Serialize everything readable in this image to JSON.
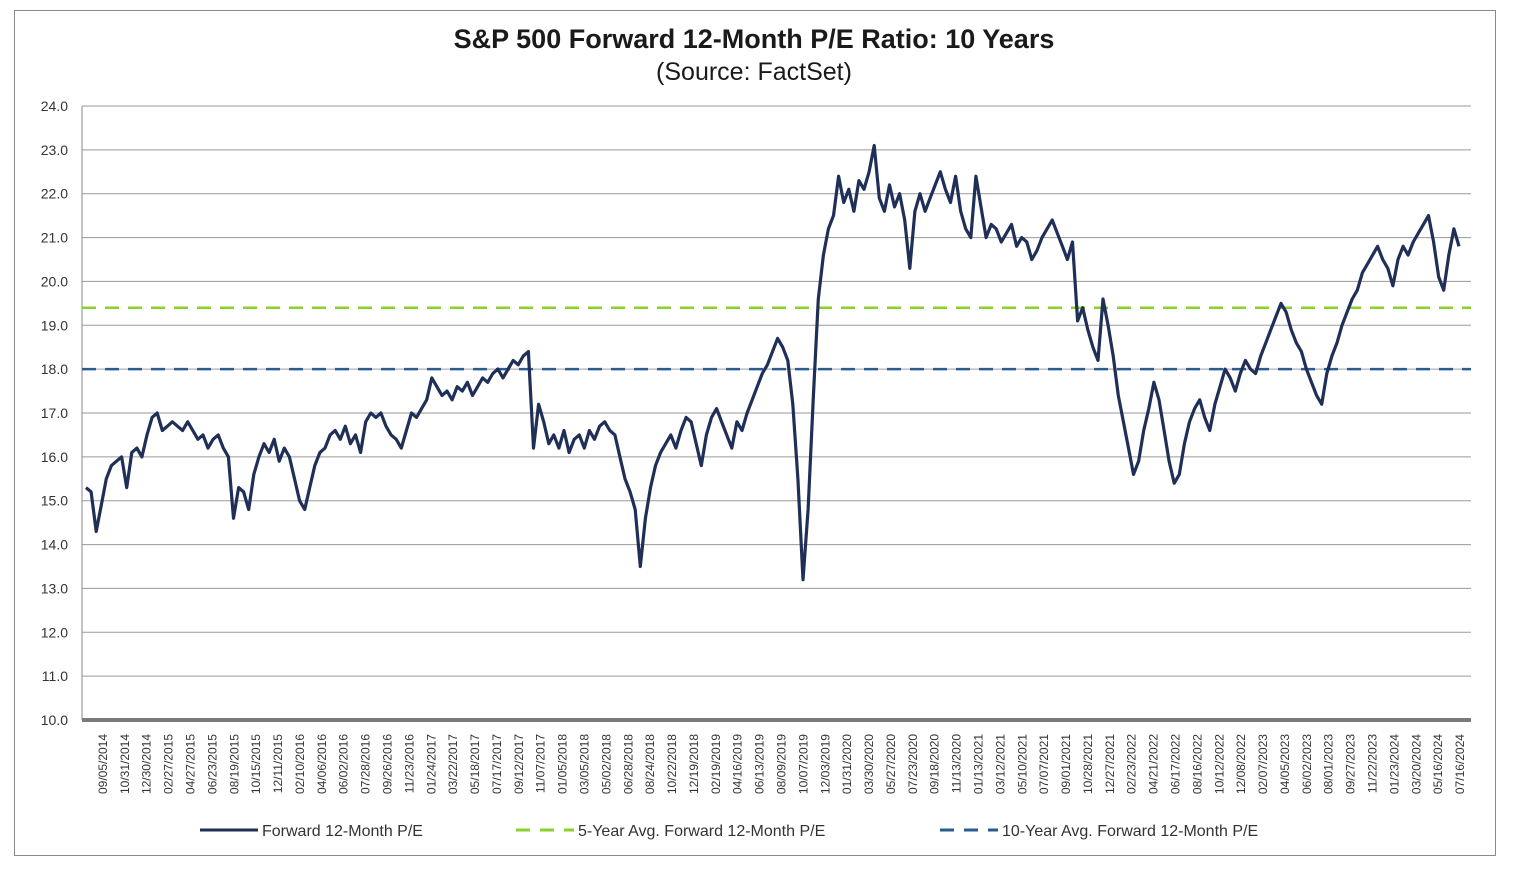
{
  "chart_data": {
    "type": "line",
    "title": "S&P 500 Forward 12-Month P/E Ratio: 10 Years",
    "subtitle": "(Source: FactSet)",
    "xlabel": "",
    "ylabel": "",
    "ylim": [
      10,
      24
    ],
    "grid": true,
    "legend_position": "bottom",
    "y_ticks": [
      "24.0",
      "23.0",
      "22.0",
      "21.0",
      "20.0",
      "19.0",
      "18.0",
      "17.0",
      "16.0",
      "15.0",
      "14.0",
      "13.0",
      "12.0",
      "11.0",
      "10.0"
    ],
    "x_tick_labels": [
      "09/05/2014",
      "10/31/2014",
      "12/30/2014",
      "02/27/2015",
      "04/27/2015",
      "06/23/2015",
      "08/19/2015",
      "10/15/2015",
      "12/11/2015",
      "02/10/2016",
      "04/06/2016",
      "06/02/2016",
      "07/28/2016",
      "09/26/2016",
      "11/23/2016",
      "01/24/2017",
      "03/22/2017",
      "05/18/2017",
      "07/17/2017",
      "09/12/2017",
      "11/07/2017",
      "01/05/2018",
      "03/05/2018",
      "05/02/2018",
      "06/28/2018",
      "08/24/2018",
      "10/22/2018",
      "12/19/2018",
      "02/19/2019",
      "04/16/2019",
      "06/13/2019",
      "08/09/2019",
      "10/07/2019",
      "12/03/2019",
      "01/31/2020",
      "03/30/2020",
      "05/27/2020",
      "07/23/2020",
      "09/18/2020",
      "11/13/2020",
      "01/13/2021",
      "03/12/2021",
      "05/10/2021",
      "07/07/2021",
      "09/01/2021",
      "10/28/2021",
      "12/27/2021",
      "02/23/2022",
      "04/21/2022",
      "06/17/2022",
      "08/16/2022",
      "10/12/2022",
      "12/08/2022",
      "02/07/2023",
      "04/05/2023",
      "06/02/2023",
      "08/01/2023",
      "09/27/2023",
      "11/22/2023",
      "01/23/2024",
      "03/20/2024",
      "05/16/2024",
      "07/16/2024"
    ],
    "series": [
      {
        "name": "Forward 12-Month P/E",
        "color": "#1f2f57",
        "style": "solid",
        "values": [
          15.3,
          15.2,
          14.3,
          14.9,
          15.5,
          15.8,
          15.9,
          16.0,
          15.3,
          16.1,
          16.2,
          16.0,
          16.5,
          16.9,
          17.0,
          16.6,
          16.7,
          16.8,
          16.7,
          16.6,
          16.8,
          16.6,
          16.4,
          16.5,
          16.2,
          16.4,
          16.5,
          16.2,
          16.0,
          14.6,
          15.3,
          15.2,
          14.8,
          15.6,
          16.0,
          16.3,
          16.1,
          16.4,
          15.9,
          16.2,
          16.0,
          15.5,
          15.0,
          14.8,
          15.3,
          15.8,
          16.1,
          16.2,
          16.5,
          16.6,
          16.4,
          16.7,
          16.3,
          16.5,
          16.1,
          16.8,
          17.0,
          16.9,
          17.0,
          16.7,
          16.5,
          16.4,
          16.2,
          16.6,
          17.0,
          16.9,
          17.1,
          17.3,
          17.8,
          17.6,
          17.4,
          17.5,
          17.3,
          17.6,
          17.5,
          17.7,
          17.4,
          17.6,
          17.8,
          17.7,
          17.9,
          18.0,
          17.8,
          18.0,
          18.2,
          18.1,
          18.3,
          18.4,
          16.2,
          17.2,
          16.8,
          16.3,
          16.5,
          16.2,
          16.6,
          16.1,
          16.4,
          16.5,
          16.2,
          16.6,
          16.4,
          16.7,
          16.8,
          16.6,
          16.5,
          16.0,
          15.5,
          15.2,
          14.8,
          13.5,
          14.6,
          15.3,
          15.8,
          16.1,
          16.3,
          16.5,
          16.2,
          16.6,
          16.9,
          16.8,
          16.3,
          15.8,
          16.5,
          16.9,
          17.1,
          16.8,
          16.5,
          16.2,
          16.8,
          16.6,
          17.0,
          17.3,
          17.6,
          17.9,
          18.1,
          18.4,
          18.7,
          18.5,
          18.2,
          17.2,
          15.5,
          13.2,
          14.8,
          17.3,
          19.6,
          20.6,
          21.2,
          21.5,
          22.4,
          21.8,
          22.1,
          21.6,
          22.3,
          22.1,
          22.5,
          23.1,
          21.9,
          21.6,
          22.2,
          21.7,
          22.0,
          21.4,
          20.3,
          21.6,
          22.0,
          21.6,
          21.9,
          22.2,
          22.5,
          22.1,
          21.8,
          22.4,
          21.6,
          21.2,
          21.0,
          22.4,
          21.7,
          21.0,
          21.3,
          21.2,
          20.9,
          21.1,
          21.3,
          20.8,
          21.0,
          20.9,
          20.5,
          20.7,
          21.0,
          21.2,
          21.4,
          21.1,
          20.8,
          20.5,
          20.9,
          19.1,
          19.4,
          18.9,
          18.5,
          18.2,
          19.6,
          19.0,
          18.3,
          17.4,
          16.8,
          16.2,
          15.6,
          15.9,
          16.6,
          17.1,
          17.7,
          17.3,
          16.6,
          15.9,
          15.4,
          15.6,
          16.3,
          16.8,
          17.1,
          17.3,
          16.9,
          16.6,
          17.2,
          17.6,
          18.0,
          17.8,
          17.5,
          17.9,
          18.2,
          18.0,
          17.9,
          18.3,
          18.6,
          18.9,
          19.2,
          19.5,
          19.3,
          18.9,
          18.6,
          18.4,
          18.0,
          17.7,
          17.4,
          17.2,
          17.9,
          18.3,
          18.6,
          19.0,
          19.3,
          19.6,
          19.8,
          20.2,
          20.4,
          20.6,
          20.8,
          20.5,
          20.3,
          19.9,
          20.5,
          20.8,
          20.6,
          20.9,
          21.1,
          21.3,
          21.5,
          20.9,
          20.1,
          19.8,
          20.6,
          21.2,
          20.8
        ]
      },
      {
        "name": "5-Year Avg. Forward 12-Month P/E",
        "color": "#8bd12e",
        "style": "dashed",
        "value": 19.4
      },
      {
        "name": "10-Year Avg. Forward 12-Month P/E",
        "color": "#2b5c8f",
        "style": "dashed",
        "value": 18.0
      }
    ]
  }
}
